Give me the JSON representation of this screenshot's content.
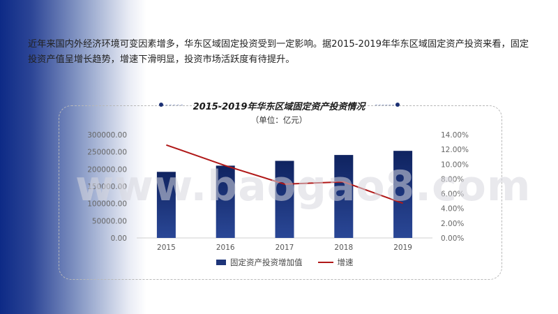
{
  "intro_text": "近年来国内外经济环境可变因素增多，华东区域固定投资受到一定影响。据2015-2019年华东区域固定资产投资来看，固定投资产值呈增长趋势，增速下滑明显，投资市场活跃度有待提升。",
  "watermark": "www.baogao8.com",
  "colors": {
    "bar": "#1e3579",
    "line": "#b01818",
    "accent": "#0d2a86"
  },
  "chart_data": {
    "type": "bar",
    "title": "2015-2019年华东区域固定资产投资情况",
    "subtitle": "（单位：亿元）",
    "categories": [
      "2015",
      "2016",
      "2017",
      "2018",
      "2019"
    ],
    "series": [
      {
        "name": "固定资产投资增加值",
        "type": "bar",
        "axis": "left",
        "values": [
          192000,
          210000,
          224000,
          241000,
          253000
        ]
      },
      {
        "name": "增速",
        "type": "line",
        "axis": "right",
        "values": [
          12.6,
          9.8,
          7.3,
          7.6,
          4.7
        ]
      }
    ],
    "y_left": {
      "ylim": [
        0,
        300000
      ],
      "ticks": [
        "0.00",
        "50000.00",
        "100000.00",
        "150000.00",
        "200000.00",
        "250000.00",
        "300000.00"
      ]
    },
    "y_right": {
      "ylim": [
        0,
        14
      ],
      "ticks": [
        "0.00%",
        "2.00%",
        "4.00%",
        "6.00%",
        "8.00%",
        "10.00%",
        "12.00%",
        "14.00%"
      ]
    },
    "legend_position": "bottom",
    "grid": false
  }
}
